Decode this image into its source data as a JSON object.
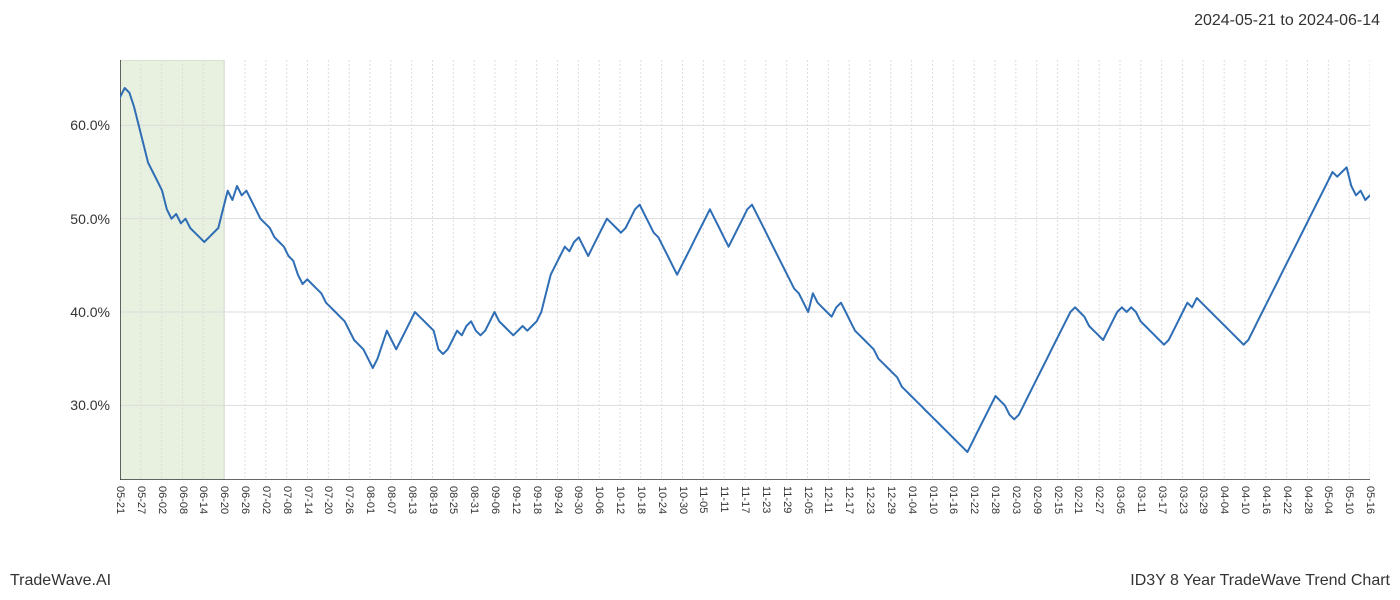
{
  "header": {
    "date_range": "2024-05-21 to 2024-06-14"
  },
  "footer": {
    "left": "TradeWave.AI",
    "right": "ID3Y 8 Year TradeWave Trend Chart"
  },
  "chart": {
    "type": "line",
    "background_color": "#ffffff",
    "grid_color": "#dddddd",
    "axis_color": "#333333",
    "line_color": "#2f6eb5",
    "line_width": 2,
    "highlight_band": {
      "fill": "#e8f0e0",
      "stroke": "#c8d8c0",
      "start_index": 0,
      "end_index": 5
    },
    "y_axis": {
      "min": 22,
      "max": 67,
      "ticks": [
        30,
        40,
        50,
        60
      ],
      "tick_labels": [
        "30.0%",
        "40.0%",
        "50.0%",
        "60.0%"
      ],
      "label_fontsize": 14
    },
    "x_axis": {
      "tick_labels": [
        "05-21",
        "05-27",
        "06-02",
        "06-08",
        "06-14",
        "06-20",
        "06-26",
        "07-02",
        "07-08",
        "07-14",
        "07-20",
        "07-26",
        "08-01",
        "08-07",
        "08-13",
        "08-19",
        "08-25",
        "08-31",
        "09-06",
        "09-12",
        "09-18",
        "09-24",
        "09-30",
        "10-06",
        "10-12",
        "10-18",
        "10-24",
        "10-30",
        "11-05",
        "11-11",
        "11-17",
        "11-23",
        "11-29",
        "12-05",
        "12-11",
        "12-17",
        "12-23",
        "12-29",
        "01-04",
        "01-10",
        "01-16",
        "01-22",
        "01-28",
        "02-03",
        "02-09",
        "02-15",
        "02-21",
        "02-27",
        "03-05",
        "03-11",
        "03-17",
        "03-23",
        "03-29",
        "04-04",
        "04-10",
        "04-16",
        "04-22",
        "04-28",
        "05-04",
        "05-10",
        "05-16"
      ],
      "label_fontsize": 11
    },
    "series": {
      "values": [
        63,
        64,
        63.5,
        62,
        60,
        58,
        56,
        55,
        54,
        53,
        51,
        50,
        50.5,
        49.5,
        50,
        49,
        48.5,
        48,
        47.5,
        48,
        48.5,
        49,
        51,
        53,
        52,
        53.5,
        52.5,
        53,
        52,
        51,
        50,
        49.5,
        49,
        48,
        47.5,
        47,
        46,
        45.5,
        44,
        43,
        43.5,
        43,
        42.5,
        42,
        41,
        40.5,
        40,
        39.5,
        39,
        38,
        37,
        36.5,
        36,
        35,
        34,
        35,
        36.5,
        38,
        37,
        36,
        37,
        38,
        39,
        40,
        39.5,
        39,
        38.5,
        38,
        36,
        35.5,
        36,
        37,
        38,
        37.5,
        38.5,
        39,
        38,
        37.5,
        38,
        39,
        40,
        39,
        38.5,
        38,
        37.5,
        38,
        38.5,
        38,
        38.5,
        39,
        40,
        42,
        44,
        45,
        46,
        47,
        46.5,
        47.5,
        48,
        47,
        46,
        47,
        48,
        49,
        50,
        49.5,
        49,
        48.5,
        49,
        50,
        51,
        51.5,
        50.5,
        49.5,
        48.5,
        48,
        47,
        46,
        45,
        44,
        45,
        46,
        47,
        48,
        49,
        50,
        51,
        50,
        49,
        48,
        47,
        48,
        49,
        50,
        51,
        51.5,
        50.5,
        49.5,
        48.5,
        47.5,
        46.5,
        45.5,
        44.5,
        43.5,
        42.5,
        42,
        41,
        40,
        42,
        41,
        40.5,
        40,
        39.5,
        40.5,
        41,
        40,
        39,
        38,
        37.5,
        37,
        36.5,
        36,
        35,
        34.5,
        34,
        33.5,
        33,
        32,
        31.5,
        31,
        30.5,
        30,
        29.5,
        29,
        28.5,
        28,
        27.5,
        27,
        26.5,
        26,
        25.5,
        25,
        26,
        27,
        28,
        29,
        30,
        31,
        30.5,
        30,
        29,
        28.5,
        29,
        30,
        31,
        32,
        33,
        34,
        35,
        36,
        37,
        38,
        39,
        40,
        40.5,
        40,
        39.5,
        38.5,
        38,
        37.5,
        37,
        38,
        39,
        40,
        40.5,
        40,
        40.5,
        40,
        39,
        38.5,
        38,
        37.5,
        37,
        36.5,
        37,
        38,
        39,
        40,
        41,
        40.5,
        41.5,
        41,
        40.5,
        40,
        39.5,
        39,
        38.5,
        38,
        37.5,
        37,
        36.5,
        37,
        38,
        39,
        40,
        41,
        42,
        43,
        44,
        45,
        46,
        47,
        48,
        49,
        50,
        51,
        52,
        53,
        54,
        55,
        54.5,
        55,
        55.5,
        53.5,
        52.5,
        53,
        52,
        52.5
      ]
    }
  }
}
